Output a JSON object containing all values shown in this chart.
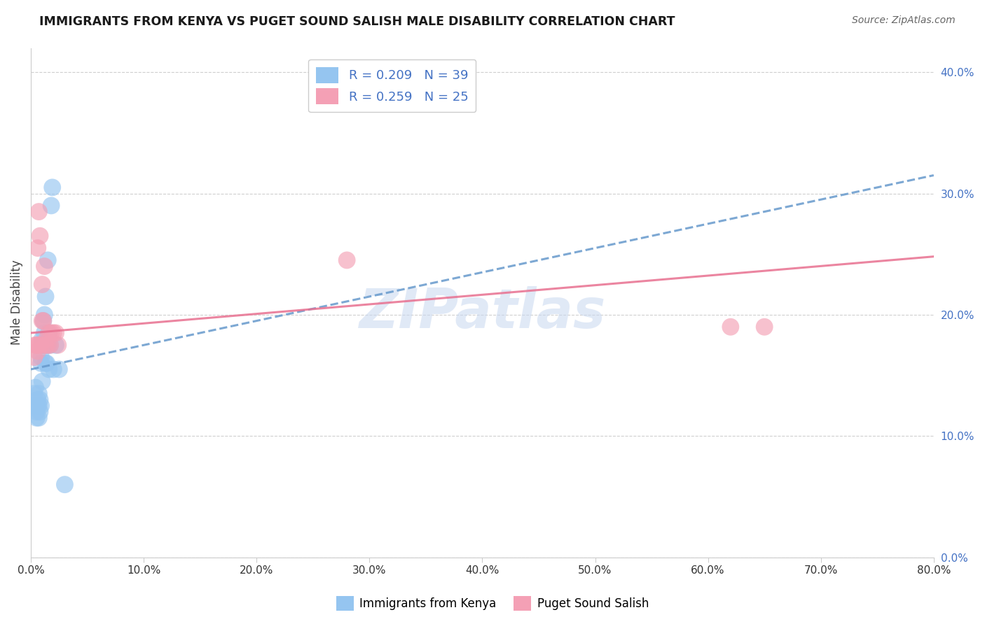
{
  "title": "IMMIGRANTS FROM KENYA VS PUGET SOUND SALISH MALE DISABILITY CORRELATION CHART",
  "source": "Source: ZipAtlas.com",
  "ylabel": "Male Disability",
  "xlim": [
    0.0,
    0.8
  ],
  "ylim": [
    0.0,
    0.42
  ],
  "yticks": [
    0.0,
    0.1,
    0.2,
    0.3,
    0.4
  ],
  "xticks": [
    0.0,
    0.1,
    0.2,
    0.3,
    0.4,
    0.5,
    0.6,
    0.7,
    0.8
  ],
  "blue_R": 0.209,
  "blue_N": 39,
  "pink_R": 0.259,
  "pink_N": 25,
  "blue_color": "#95C5F0",
  "pink_color": "#F4A0B5",
  "blue_line_color": "#6699CC",
  "blue_line_style": "--",
  "pink_line_color": "#E87090",
  "pink_line_style": "-",
  "watermark": "ZIPatlas",
  "watermark_color": "#C8D8F0",
  "axis_label_color": "#4472C4",
  "legend_label_blue": "Immigrants from Kenya",
  "legend_label_pink": "Puget Sound Salish",
  "blue_x": [
    0.002,
    0.003,
    0.004,
    0.004,
    0.005,
    0.005,
    0.006,
    0.006,
    0.007,
    0.007,
    0.007,
    0.008,
    0.008,
    0.009,
    0.009,
    0.009,
    0.01,
    0.01,
    0.01,
    0.011,
    0.011,
    0.012,
    0.012,
    0.013,
    0.013,
    0.013,
    0.014,
    0.014,
    0.015,
    0.015,
    0.016,
    0.016,
    0.017,
    0.018,
    0.019,
    0.02,
    0.022,
    0.025,
    0.03
  ],
  "blue_y": [
    0.125,
    0.135,
    0.14,
    0.125,
    0.115,
    0.12,
    0.13,
    0.125,
    0.115,
    0.125,
    0.135,
    0.12,
    0.13,
    0.125,
    0.16,
    0.165,
    0.145,
    0.175,
    0.18,
    0.175,
    0.195,
    0.185,
    0.2,
    0.215,
    0.175,
    0.16,
    0.16,
    0.175,
    0.175,
    0.245,
    0.185,
    0.155,
    0.175,
    0.29,
    0.305,
    0.155,
    0.175,
    0.155,
    0.06
  ],
  "pink_x": [
    0.003,
    0.004,
    0.005,
    0.006,
    0.006,
    0.007,
    0.007,
    0.008,
    0.009,
    0.01,
    0.01,
    0.011,
    0.012,
    0.013,
    0.014,
    0.015,
    0.016,
    0.017,
    0.018,
    0.02,
    0.022,
    0.024,
    0.28,
    0.62,
    0.65
  ],
  "pink_y": [
    0.165,
    0.175,
    0.175,
    0.17,
    0.255,
    0.175,
    0.285,
    0.265,
    0.175,
    0.195,
    0.225,
    0.195,
    0.24,
    0.175,
    0.18,
    0.175,
    0.185,
    0.175,
    0.185,
    0.185,
    0.185,
    0.175,
    0.245,
    0.19,
    0.19
  ],
  "blue_trend_x0": 0.0,
  "blue_trend_y0": 0.155,
  "blue_trend_x1": 0.8,
  "blue_trend_y1": 0.315,
  "pink_trend_x0": 0.0,
  "pink_trend_y0": 0.185,
  "pink_trend_x1": 0.8,
  "pink_trend_y1": 0.248
}
